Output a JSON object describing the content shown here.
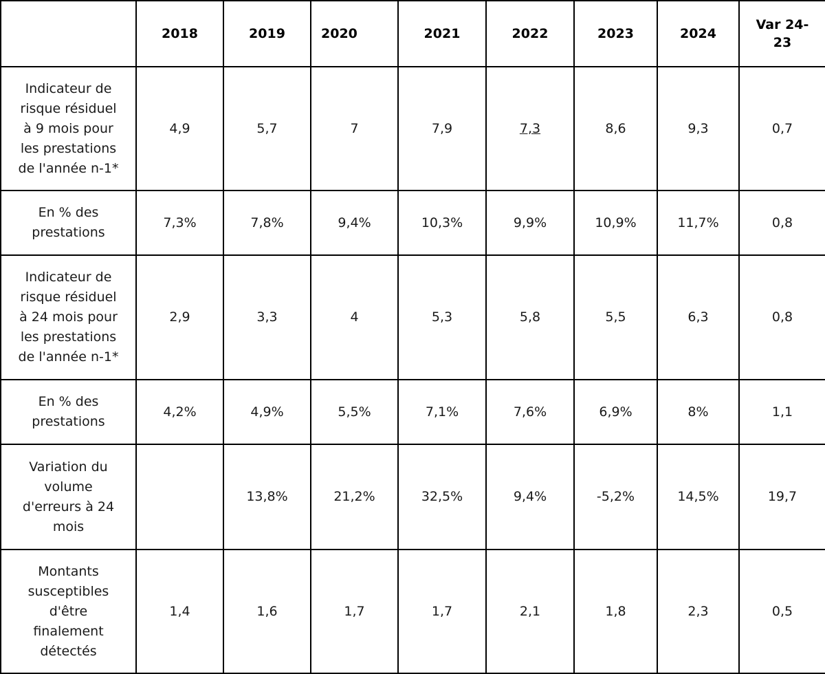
{
  "table": {
    "headers": [
      "",
      "2018",
      "2019",
      "2020",
      "2021",
      "2022",
      "2023",
      "2024",
      "Var 24-\n23"
    ],
    "rows": [
      {
        "label": "Indicateur de\nrisque résiduel\nà 9 mois pour\nles prestations\nde l'année n-1*",
        "values": [
          "4,9",
          "5,7",
          "7",
          "7,9",
          "7,3",
          "8,6",
          "9,3",
          "0,7"
        ]
      },
      {
        "label": "En % des\nprestations",
        "values": [
          "7,3%",
          "7,8%",
          "9,4%",
          "10,3%",
          "9,9%",
          "10,9%",
          "11,7%",
          "0,8"
        ]
      },
      {
        "label": "Indicateur de\nrisque résiduel\nà 24 mois pour\nles prestations\nde l'année n-1*",
        "values": [
          "2,9",
          "3,3",
          "4",
          "5,3",
          "5,8",
          "5,5",
          "6,3",
          "0,8"
        ]
      },
      {
        "label": "En % des\nprestations",
        "values": [
          "4,2%",
          "4,9%",
          "5,5%",
          "7,1%",
          "7,6%",
          "6,9%",
          "8%",
          "1,1"
        ]
      },
      {
        "label": "Variation du\nvolume\nd'erreurs à 24\nmois",
        "values": [
          "",
          "13,8%",
          "21,2%",
          "32,5%",
          "9,4%",
          "-5,2%",
          "14,5%",
          "19,7"
        ]
      },
      {
        "label": "Montants\nsusceptibles\nd'être\nfinalement\ndétectés",
        "values": [
          "1,4",
          "1,6",
          "1,7",
          "1,7",
          "2,1",
          "1,8",
          "2,3",
          "0,5"
        ]
      }
    ]
  },
  "colors": {
    "border": "#000000",
    "text": "#1a1a1a",
    "background": "#ffffff"
  }
}
